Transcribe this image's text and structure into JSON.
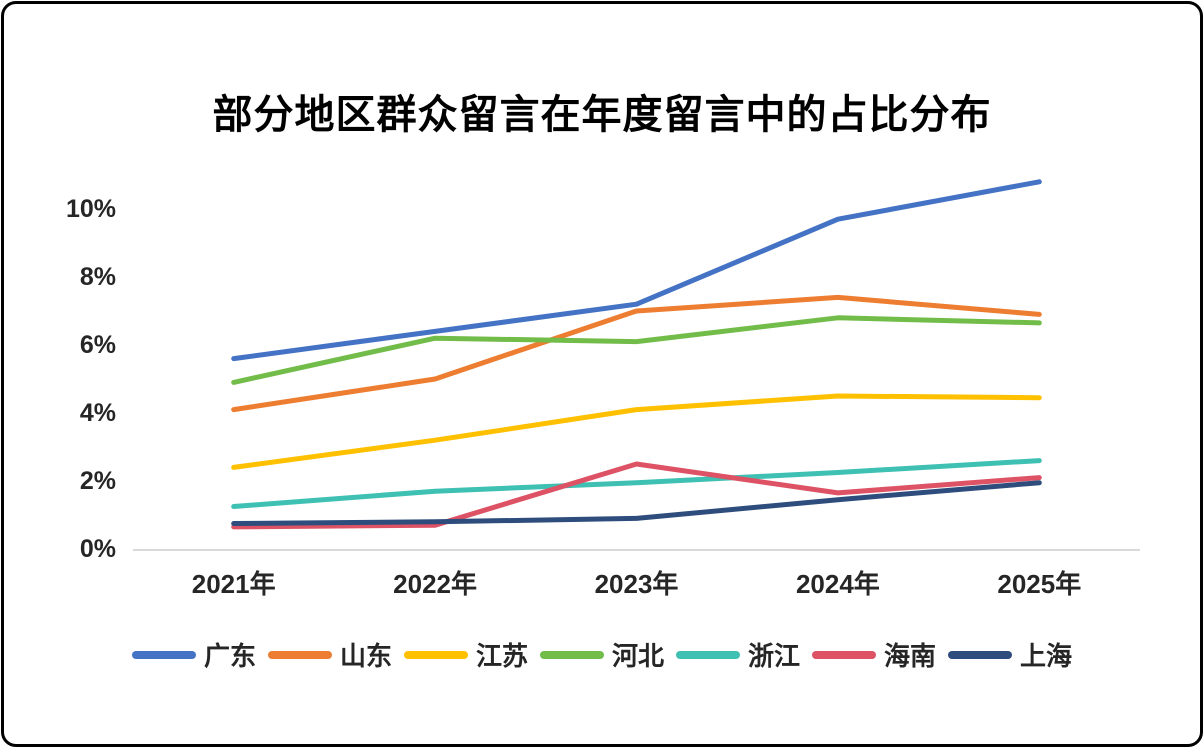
{
  "chart_data": {
    "type": "line",
    "title": "部分地区群众留言在年度留言中的占比分布",
    "categories": [
      "2021年",
      "2022年",
      "2023年",
      "2024年",
      "2025年"
    ],
    "series": [
      {
        "name": "广东",
        "color": "#4472C4",
        "values": [
          5.6,
          6.4,
          7.2,
          9.7,
          10.8
        ]
      },
      {
        "name": "山东",
        "color": "#ED7D31",
        "values": [
          4.1,
          5.0,
          7.0,
          7.4,
          6.9
        ]
      },
      {
        "name": "江苏",
        "color": "#FFC000",
        "values": [
          2.4,
          3.2,
          4.1,
          4.5,
          4.45
        ]
      },
      {
        "name": "河北",
        "color": "#72BC49",
        "values": [
          4.9,
          6.2,
          6.1,
          6.8,
          6.65
        ]
      },
      {
        "name": "浙江",
        "color": "#3EC0B3",
        "values": [
          1.25,
          1.7,
          1.95,
          2.25,
          2.6
        ]
      },
      {
        "name": "海南",
        "color": "#DD5365",
        "values": [
          0.65,
          0.7,
          2.5,
          1.65,
          2.1
        ]
      },
      {
        "name": "上海",
        "color": "#2E4D7C",
        "values": [
          0.75,
          0.8,
          0.9,
          1.45,
          1.95
        ]
      }
    ],
    "yticks": [
      {
        "value": 0,
        "label": "0%"
      },
      {
        "value": 2,
        "label": "2%"
      },
      {
        "value": 4,
        "label": "4%"
      },
      {
        "value": 6,
        "label": "6%"
      },
      {
        "value": 8,
        "label": "8%"
      },
      {
        "value": 10,
        "label": "10%"
      }
    ],
    "ylim": [
      0,
      11
    ],
    "xlabel": "",
    "ylabel": "",
    "grid": false,
    "legend_position": "bottom",
    "axis_line_color": "#D9D9D9",
    "tick_text_color": "#262626",
    "title_color": "#000000",
    "background_color": "#FFFFFF",
    "frame_border_color": "#000000"
  }
}
